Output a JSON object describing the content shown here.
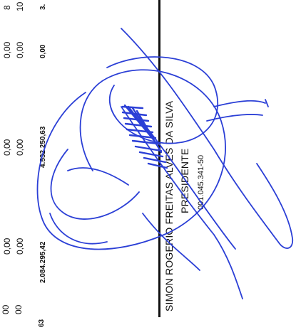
{
  "table_values": {
    "col1": [
      "0,00",
      "0,00",
      "0,00"
    ],
    "col1_total": "2.084.295,42",
    "col2": [
      "0,00",
      "0,00"
    ],
    "col2_total": "4.532.250,63",
    "col3": [
      "0,00",
      "0,00"
    ],
    "col3_total": "0,00",
    "col4_partial": [
      "8",
      "10",
      "3."
    ],
    "col0_partial": [
      "00",
      "00",
      "63"
    ]
  },
  "signature_block": {
    "name": "SIMON ROGERIO FREITAS ALVES DA SILVA",
    "role": "PRESIDENTE",
    "id_number": "001.045.341-50"
  },
  "colors": {
    "ink": "#111111",
    "signature_ink": "#2b3fd6"
  },
  "icons": [
    "handwritten-signature"
  ]
}
